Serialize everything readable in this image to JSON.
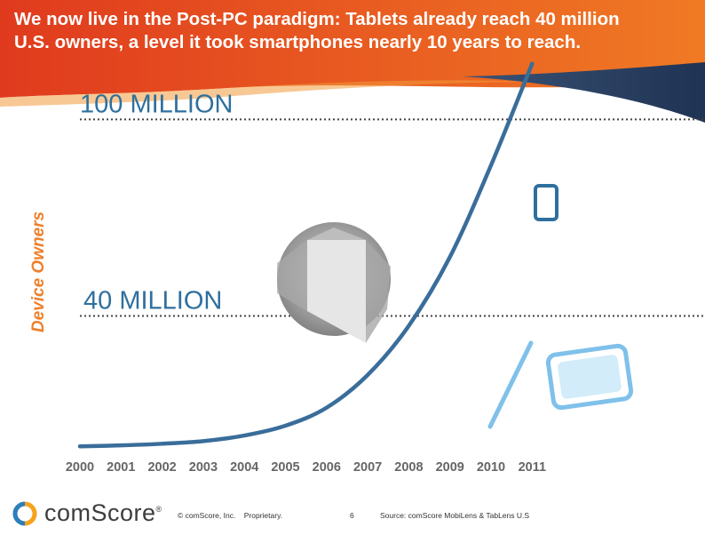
{
  "slide": {
    "title": "We  now live in the Post-PC paradigm: Tablets already reach 40 million\nU.S. owners, a level it took smartphones nearly 10 years to reach.",
    "colors": {
      "header_orange": "#ea5b20",
      "header_red": "#e03a1e",
      "header_navy": "#2e4467",
      "curve": "#3a6d9a",
      "label_blue": "#2f6f9e",
      "ylabel_orange": "#ef7f2a",
      "tablet_light_blue": "#7fc1ea"
    }
  },
  "chart_data": {
    "type": "line",
    "ylabel": "Device Owners",
    "categories": [
      "2000",
      "2001",
      "2002",
      "2003",
      "2004",
      "2005",
      "2006",
      "2007",
      "2008",
      "2009",
      "2010",
      "2011"
    ],
    "ylim": [
      0,
      118
    ],
    "series": [
      {
        "values": [
          0.2,
          0.5,
          1,
          1.8,
          3.5,
          6.5,
          12,
          22,
          37,
          58,
          86,
          117
        ]
      }
    ],
    "reference_lines": [
      {
        "label": "100 MILLION",
        "value": 100
      },
      {
        "label": "40 MILLION",
        "value": 40
      }
    ],
    "grid": false,
    "legend": "none",
    "icons": [
      "smartphone-icon",
      "pc-screen-icon",
      "stylus-icon",
      "tablet-icon"
    ]
  },
  "footer": {
    "logo": "comScore",
    "logo_mark": "®",
    "copyright": "© comScore, Inc.    Proprietary.",
    "page_number": "6",
    "source": "Source: comScore MobiLens & TabLens U.S"
  }
}
